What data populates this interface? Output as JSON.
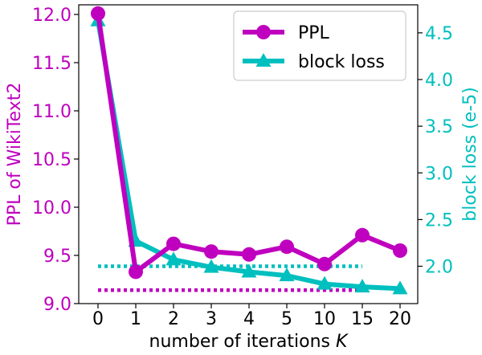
{
  "chart_data": {
    "type": "line",
    "categories": [
      "0",
      "1",
      "2",
      "3",
      "4",
      "5",
      "10",
      "15",
      "20"
    ],
    "xlabel": "number of iterations",
    "xlabel_var": "K",
    "y_left": {
      "label": "PPL of WikiText2",
      "range": [
        9.0,
        12.1
      ],
      "ticks": [
        "9.0",
        "9.5",
        "10.0",
        "10.5",
        "11.0",
        "11.5",
        "12.0"
      ],
      "color": "#bf00bf"
    },
    "y_right": {
      "label": "block loss (e-5)",
      "range": [
        1.6,
        4.8
      ],
      "ticks": [
        "2.0",
        "2.5",
        "3.0",
        "3.5",
        "4.0",
        "4.5"
      ],
      "color": "#00bfbf"
    },
    "series": [
      {
        "name": "PPL",
        "axis": "left",
        "color": "#bf00bf",
        "marker": "circle",
        "values": [
          12.01,
          9.33,
          9.62,
          9.54,
          9.51,
          9.59,
          9.41,
          9.71,
          9.55
        ]
      },
      {
        "name": "block loss",
        "axis": "right",
        "color": "#00bfbf",
        "marker": "triangle",
        "values": [
          4.63,
          2.27,
          2.07,
          1.99,
          1.94,
          1.9,
          1.81,
          1.78,
          1.76
        ]
      }
    ],
    "reference_lines": [
      {
        "axis": "left",
        "value": 9.14,
        "color": "#bf00bf",
        "style": "dotted",
        "from_index": 0,
        "to_index": 7
      },
      {
        "axis": "right",
        "value": 2.0,
        "color": "#00bfbf",
        "style": "dotted",
        "from_index": 0,
        "to_index": 7
      }
    ],
    "legend": {
      "placement": "top-right"
    },
    "grid": false
  }
}
